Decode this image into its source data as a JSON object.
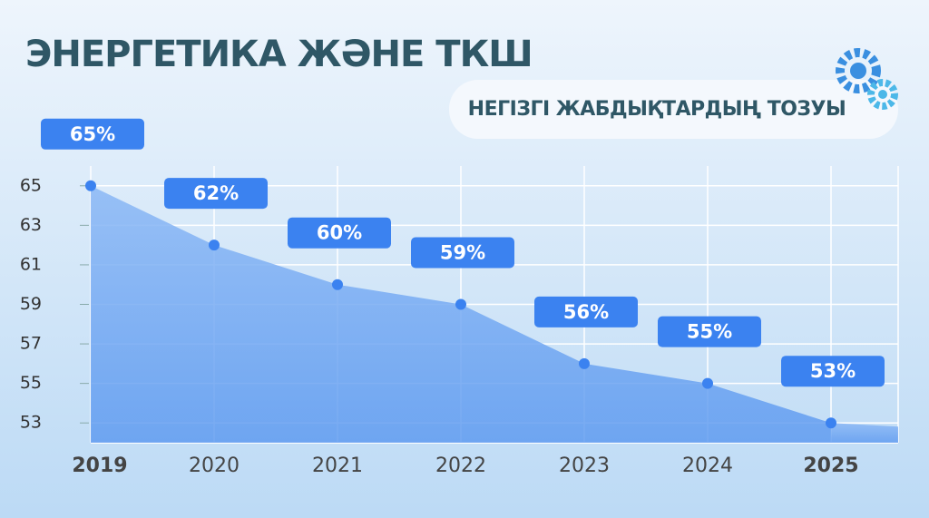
{
  "chart_data": {
    "type": "area",
    "title": "ЭНЕРГЕТИКА ЖӘНЕ ТКШ",
    "subtitle": "НЕГІЗГІ ЖАБДЫҚТАРДЫҢ ТОЗУЫ",
    "categories": [
      "2019",
      "2020",
      "2021",
      "2022",
      "2023",
      "2024",
      "2025"
    ],
    "values": [
      65,
      62,
      60,
      59,
      56,
      55,
      53
    ],
    "value_labels": [
      "65%",
      "62%",
      "60%",
      "59%",
      "56%",
      "55%",
      "53%"
    ],
    "color": "#3b82f0",
    "ylim": [
      52,
      66
    ],
    "yticks": [
      53,
      55,
      57,
      59,
      61,
      63,
      65
    ],
    "grid": true
  }
}
